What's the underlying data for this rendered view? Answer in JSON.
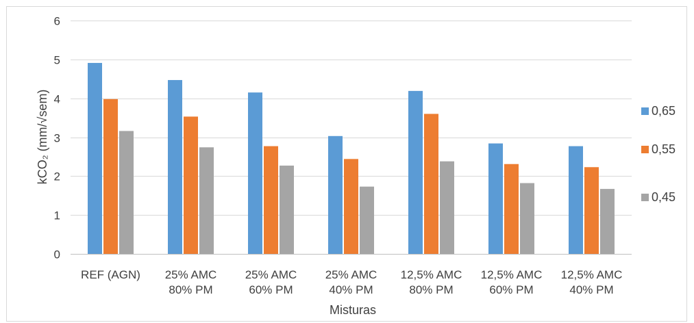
{
  "chart_data": {
    "type": "bar",
    "title": "",
    "xlabel": "Misturas",
    "ylabel": "kCO₂ (mm/√sem)",
    "ylim": [
      0,
      6
    ],
    "yticks": [
      0,
      1,
      2,
      3,
      4,
      5,
      6
    ],
    "grid": true,
    "legend_position": "right",
    "categories": [
      [
        "REF (AGN)"
      ],
      [
        "25% AMC",
        "80% PM"
      ],
      [
        "25% AMC",
        "60% PM"
      ],
      [
        "25% AMC",
        "40% PM"
      ],
      [
        "12,5% AMC",
        "80% PM"
      ],
      [
        "12,5% AMC",
        "60% PM"
      ],
      [
        "12,5% AMC",
        "40% PM"
      ]
    ],
    "series": [
      {
        "name": "0,65",
        "color": "#5B9BD5",
        "values": [
          4.91,
          4.47,
          4.15,
          3.03,
          4.19,
          2.84,
          2.77
        ]
      },
      {
        "name": "0,55",
        "color": "#ED7D31",
        "values": [
          3.98,
          3.53,
          2.77,
          2.44,
          3.6,
          2.31,
          2.23
        ]
      },
      {
        "name": "0,45",
        "color": "#A5A5A5",
        "values": [
          3.16,
          2.74,
          2.27,
          1.73,
          2.38,
          1.82,
          1.67
        ]
      }
    ]
  }
}
